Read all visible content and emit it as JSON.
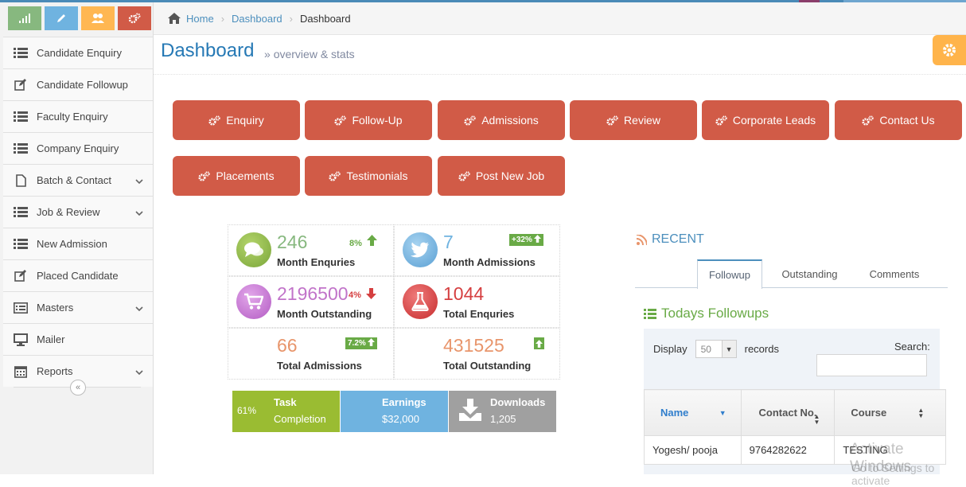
{
  "shortcuts": [
    {
      "icon": "signal-icon",
      "color": "#87b87f"
    },
    {
      "icon": "pencil-icon",
      "color": "#6fb3e0"
    },
    {
      "icon": "users-icon",
      "color": "#ffb752"
    },
    {
      "icon": "cogs-icon",
      "color": "#d15b47"
    }
  ],
  "sidebar": {
    "items": [
      {
        "label": "Candidate Enquiry",
        "icon": "list-icon",
        "has_submenu": false
      },
      {
        "label": "Candidate Followup",
        "icon": "edit-icon",
        "has_submenu": false
      },
      {
        "label": "Faculty Enquiry",
        "icon": "list-icon",
        "has_submenu": false
      },
      {
        "label": "Company Enquiry",
        "icon": "list-icon",
        "has_submenu": false
      },
      {
        "label": "Batch & Contact",
        "icon": "file-icon",
        "has_submenu": true
      },
      {
        "label": "Job & Review",
        "icon": "list-icon",
        "has_submenu": true
      },
      {
        "label": "New Admission",
        "icon": "list-icon",
        "has_submenu": false
      },
      {
        "label": "Placed Candidate",
        "icon": "edit-icon",
        "has_submenu": false
      },
      {
        "label": "Masters",
        "icon": "list-alt-icon",
        "has_submenu": true
      },
      {
        "label": "Mailer",
        "icon": "desktop-icon",
        "has_submenu": false
      },
      {
        "label": "Reports",
        "icon": "calendar-icon",
        "has_submenu": true
      }
    ],
    "collapse_icon": "double-left-icon"
  },
  "breadcrumb": {
    "home": "Home",
    "items": [
      "Dashboard",
      "Dashboard"
    ]
  },
  "header": {
    "title": "Dashboard",
    "subtitle": "overview & stats",
    "subtitle_prefix": "»"
  },
  "tiles": {
    "row1": [
      "Enquiry",
      "Follow-Up",
      "Admissions",
      "Review",
      "Corporate Leads",
      "Contact Us"
    ],
    "row2": [
      "Placements",
      "Testimonials",
      "Post New Job"
    ]
  },
  "stats": [
    {
      "value": "246",
      "label": "Month Enquries",
      "badge": "8%",
      "trend": "up",
      "color": "#87b87f",
      "icon": "comments-icon"
    },
    {
      "value": "7",
      "label": "Month Admissions",
      "badge": "+32%",
      "trend": "up",
      "color": "#6fb3e0",
      "icon": "twitter-icon"
    },
    {
      "value": "2196500",
      "label": "Month Outstanding",
      "badge": "4%",
      "trend": "down",
      "color": "#c173c9",
      "icon": "cart-icon"
    },
    {
      "value": "1044",
      "label": "Total Enquries",
      "badge": "",
      "trend": "",
      "color": "#d53f40",
      "icon": "flask-icon"
    },
    {
      "value": "66",
      "label": "Total Admissions",
      "badge": "7.2%",
      "trend": "up",
      "color": "#e8956b",
      "icon": ""
    },
    {
      "value": "431525",
      "label": "Total Outstanding",
      "badge": "",
      "trend": "up",
      "color": "#e8956b",
      "icon": ""
    }
  ],
  "infoboxes": [
    {
      "stat": "61%",
      "title": "Task",
      "subtitle": "Completion",
      "color": "#9abc32"
    },
    {
      "title": "Earnings",
      "subtitle": "$32,000",
      "color": "#6fb3e0"
    },
    {
      "title": "Downloads",
      "subtitle": "1,205",
      "color": "#a0a0a0",
      "icon": "download-icon"
    }
  ],
  "recent": {
    "title": "RECENT",
    "tabs": [
      "Followup",
      "Outstanding",
      "Comments"
    ],
    "active": 0
  },
  "followups": {
    "title": "Todays Followups",
    "display": "Display",
    "len": "50",
    "records": "records",
    "search": "Search:",
    "columns": [
      "Name",
      "Contact No.",
      "Course"
    ],
    "rows": [
      [
        "Yogesh/ pooja",
        "9764282622",
        "TESTING"
      ]
    ]
  },
  "watermark": {
    "line1": "Activate Windows",
    "line2": "Go to Settings to activate"
  }
}
